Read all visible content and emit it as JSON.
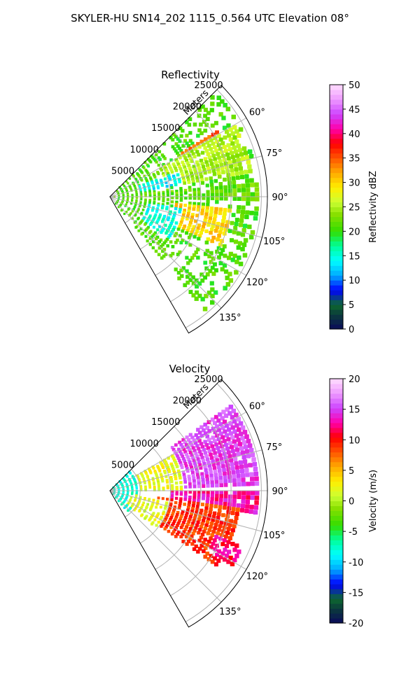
{
  "figure": {
    "title": "SKYLER-HU  SN14_202  1115_0.564 UTC Elevation 08°"
  },
  "chart_data": [
    {
      "type": "heatmap",
      "subtype": "polar-sector",
      "title": "Reflectivity",
      "range_label": "Meters",
      "range_ticks": [
        "5000",
        "10000",
        "15000",
        "20000",
        "25000"
      ],
      "range_values": [
        5000,
        10000,
        15000,
        20000,
        25000
      ],
      "range_max": 26000,
      "azimuth_range": [
        45,
        150
      ],
      "azimuth_ticks": [
        "60°",
        "75°",
        "90°",
        "105°",
        "120°",
        "135°"
      ],
      "azimuth_values": [
        60,
        75,
        90,
        105,
        120,
        135
      ],
      "colorbar": {
        "label": "Reflectivity dBZ",
        "vmin": 0,
        "vmax": 50,
        "ticks": [
          "0",
          "5",
          "10",
          "15",
          "20",
          "25",
          "30",
          "35",
          "40",
          "45",
          "50"
        ]
      },
      "grid": true,
      "regions": [
        {
          "az": [
            45,
            140
          ],
          "r": [
            1500,
            25000
          ],
          "value": 21,
          "density": 0.5
        },
        {
          "az": [
            58,
            72
          ],
          "r": [
            14000,
            21000
          ],
          "value": 35,
          "density": 0.85
        },
        {
          "az": [
            60,
            80
          ],
          "r": [
            9000,
            24000
          ],
          "value": 25,
          "density": 0.9
        },
        {
          "az": [
            70,
            80
          ],
          "r": [
            5000,
            12000
          ],
          "value": 14,
          "density": 0.7
        },
        {
          "az": [
            95,
            115
          ],
          "r": [
            11000,
            20000
          ],
          "value": 30,
          "density": 0.8
        },
        {
          "az": [
            100,
            125
          ],
          "r": [
            6000,
            12000
          ],
          "value": 15,
          "density": 0.7
        },
        {
          "az": [
            85,
            92
          ],
          "r": [
            0,
            25000
          ],
          "value": 22,
          "density": 0.9
        }
      ]
    },
    {
      "type": "heatmap",
      "subtype": "polar-sector",
      "title": "Velocity",
      "range_label": "Meters",
      "range_ticks": [
        "5000",
        "10000",
        "15000",
        "20000",
        "25000"
      ],
      "range_values": [
        5000,
        10000,
        15000,
        20000,
        25000
      ],
      "range_max": 26000,
      "azimuth_range": [
        45,
        150
      ],
      "azimuth_ticks": [
        "60°",
        "75°",
        "90°",
        "105°",
        "120°",
        "135°"
      ],
      "azimuth_values": [
        60,
        75,
        90,
        105,
        120,
        135
      ],
      "colorbar": {
        "label": "Velocity (m/s)",
        "vmin": -20,
        "vmax": 20,
        "ticks": [
          "-20",
          "-15",
          "-10",
          "-5",
          "0",
          "5",
          "10",
          "15",
          "20"
        ]
      },
      "grid": true,
      "regions": [
        {
          "az": [
            45,
            140
          ],
          "r": [
            0,
            5000
          ],
          "value": -8,
          "density": 0.8
        },
        {
          "az": [
            60,
            90
          ],
          "r": [
            5000,
            12000
          ],
          "value": 2,
          "density": 0.7
        },
        {
          "az": [
            55,
            88
          ],
          "r": [
            12000,
            25000
          ],
          "value": 15,
          "density": 0.95
        },
        {
          "az": [
            90,
            100
          ],
          "r": [
            10000,
            25000
          ],
          "value": 13,
          "density": 0.9
        },
        {
          "az": [
            98,
            125
          ],
          "r": [
            8000,
            22000
          ],
          "value": 9,
          "density": 0.9
        },
        {
          "az": [
            100,
            130
          ],
          "r": [
            3000,
            10000
          ],
          "value": 2,
          "density": 0.6
        },
        {
          "az": [
            112,
            122
          ],
          "r": [
            19000,
            24000
          ],
          "value": 12,
          "density": 0.8
        }
      ]
    }
  ]
}
